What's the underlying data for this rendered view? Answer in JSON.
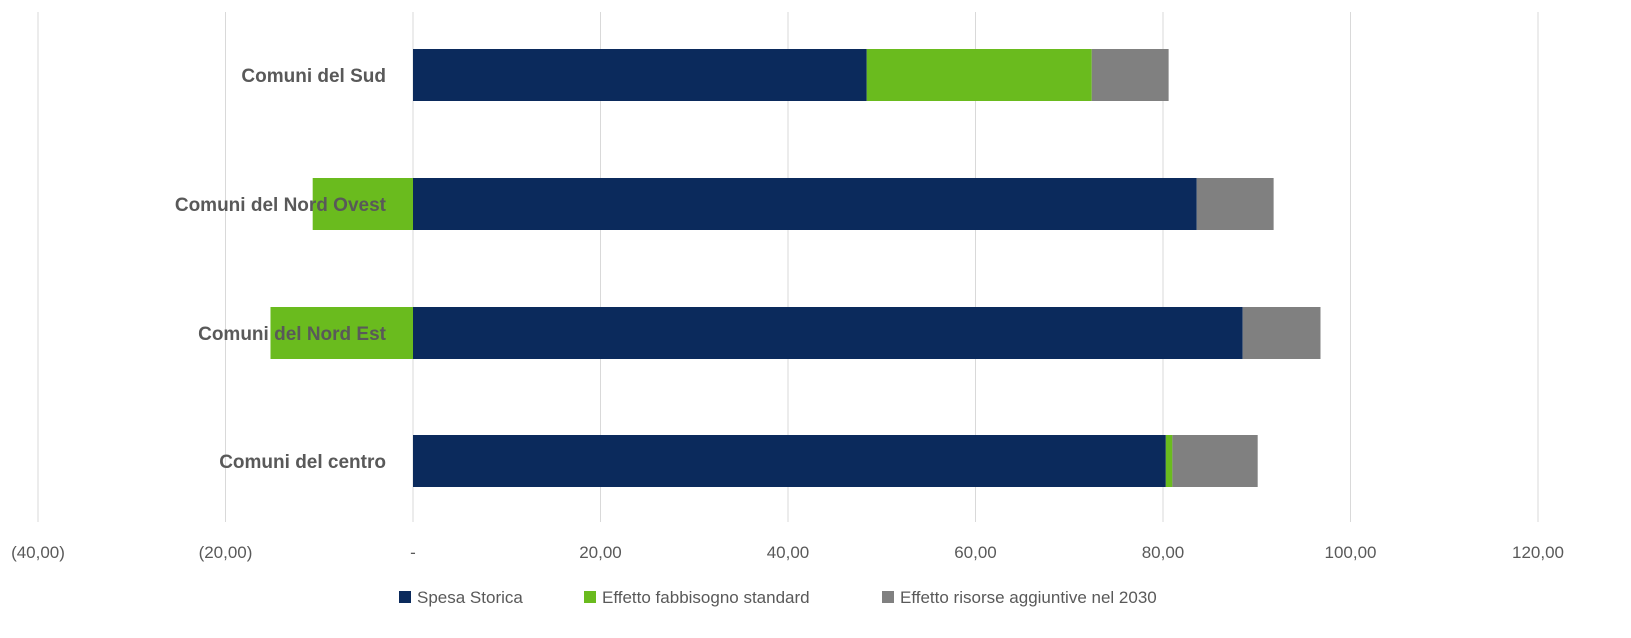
{
  "chart_data": {
    "type": "bar",
    "orientation": "horizontal",
    "stacked": true,
    "categories": [
      "Comuni del Sud",
      "Comuni del Nord Ovest",
      "Comuni del Nord Est",
      "Comuni del centro"
    ],
    "series": [
      {
        "name": "Spesa Storica",
        "color": "#0B2A5C",
        "values": [
          48.4,
          83.6,
          88.5,
          80.3
        ]
      },
      {
        "name": "Effetto fabbisogno standard",
        "color": "#6ABB1E",
        "values": [
          24.0,
          -10.7,
          -15.2,
          0.7
        ]
      },
      {
        "name": "Effetto risorse aggiuntive nel 2030",
        "color": "#808080",
        "values": [
          8.2,
          8.2,
          8.3,
          9.1
        ]
      }
    ],
    "xlim": [
      -40,
      120
    ],
    "xticks": [
      -40,
      -20,
      0,
      20,
      40,
      60,
      80,
      100,
      120
    ],
    "xtick_labels": [
      "(40,00)",
      "(20,00)",
      "-",
      "20,00",
      "40,00",
      "60,00",
      "80,00",
      "100,00",
      "120,00"
    ],
    "grid": true,
    "legend_position": "bottom",
    "title": "",
    "xlabel": "",
    "ylabel": ""
  }
}
